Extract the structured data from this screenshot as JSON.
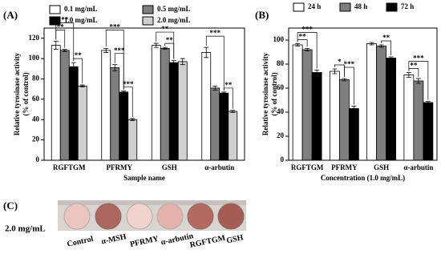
{
  "chart_data": [
    {
      "type": "bar",
      "panel_label": "(A)",
      "x_label": "Sample name",
      "y_label": [
        "Relative tyrosinase activity",
        "(% of control)"
      ],
      "categories": [
        "RGFTGM",
        "PFRMY",
        "GSH",
        "α-arbutin"
      ],
      "series": [
        {
          "name": "0.1 mg/mL",
          "color": "#ffffff",
          "values": [
            113,
            108,
            113,
            106
          ],
          "errors": [
            4,
            2,
            2,
            5
          ]
        },
        {
          "name": "0.5 mg/mL",
          "color": "#7f7f7f",
          "values": [
            108,
            91,
            110,
            71
          ],
          "errors": [
            1,
            3,
            1,
            2
          ]
        },
        {
          "name": "1.0 mg/mL",
          "color": "#000000",
          "values": [
            92,
            67,
            96,
            66
          ],
          "errors": [
            4,
            1,
            2,
            1
          ]
        },
        {
          "name": "2.0 mg/mL",
          "color": "#d0d0d0",
          "values": [
            73,
            40,
            97,
            48
          ],
          "errors": [
            1,
            1,
            3,
            1
          ]
        }
      ],
      "ylim": [
        0,
        130
      ],
      "yticks": [
        0,
        20,
        40,
        60,
        80,
        100,
        120
      ],
      "annotations": [
        "**",
        "**",
        "**",
        "***",
        "***",
        "***",
        "**",
        "**",
        "***",
        "**"
      ]
    },
    {
      "type": "bar",
      "panel_label": "(B)",
      "x_label": "Concentration (1.0 mg/mL)",
      "y_label": [
        "Relative tyrosinase activity",
        "(% of control)"
      ],
      "categories": [
        "RGFTGM",
        "PFRMY",
        "GSH",
        "α-arbutin"
      ],
      "series": [
        {
          "name": "24 h",
          "color": "#ffffff",
          "values": [
            96,
            74,
            97,
            71
          ],
          "errors": [
            1,
            2,
            1,
            2
          ]
        },
        {
          "name": "48 h",
          "color": "#7f7f7f",
          "values": [
            92,
            67,
            95,
            66
          ],
          "errors": [
            1,
            1,
            1,
            2
          ]
        },
        {
          "name": "72 h",
          "color": "#000000",
          "values": [
            73,
            43,
            85,
            48
          ],
          "errors": [
            2,
            2,
            1,
            1
          ]
        }
      ],
      "ylim": [
        0,
        110
      ],
      "yticks": [
        0,
        20,
        40,
        60,
        80,
        100
      ],
      "annotations": [
        "**",
        "***",
        "*",
        "***",
        "**",
        "**",
        "***"
      ]
    }
  ],
  "panel_c": {
    "label": "(C)",
    "row_label": "2.0 mg/mL",
    "samples": [
      "Control",
      "α-MSH",
      "PFRMY",
      "α-arbutin",
      "RGFTGM",
      "GSH"
    ]
  }
}
